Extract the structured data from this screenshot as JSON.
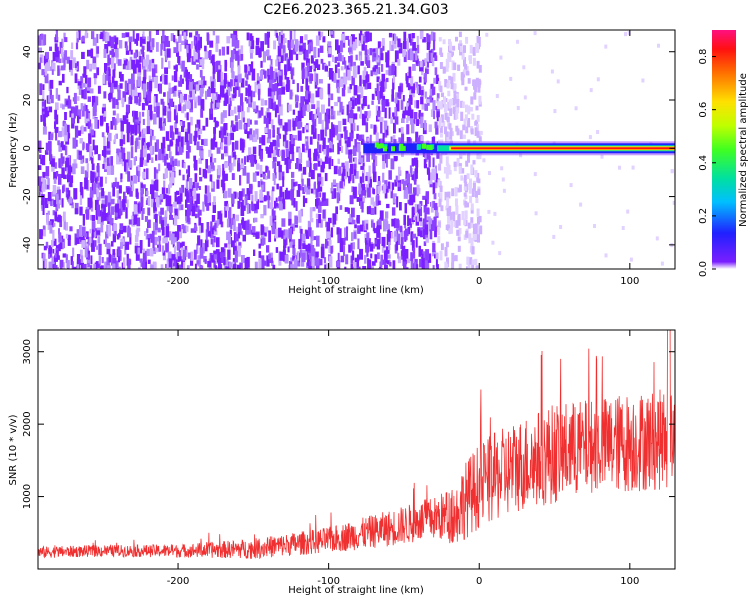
{
  "figure_title": "C2E6.2023.365.21.34.G03",
  "colors": {
    "snr_line": "#f03030",
    "noise_purple": "#7a1fff",
    "axis": "#000000"
  },
  "chart_data": [
    {
      "type": "heatmap",
      "name": "spectrogram",
      "xlabel": "Height of straight line (km)",
      "ylabel": "Frequency (Hz)",
      "xlim": [
        -293,
        130
      ],
      "ylim": [
        -50,
        49
      ],
      "xticks": [
        -200,
        -100,
        0,
        100
      ],
      "yticks": [
        -40,
        -20,
        0,
        20,
        40
      ],
      "colorbar": {
        "label": "Normalized spectral amplitude",
        "range": [
          0.0,
          0.9
        ],
        "ticks": [
          0.0,
          0.2,
          0.4,
          0.6,
          0.8
        ],
        "tick_labels": [
          "0.0",
          "0.2",
          "0.4",
          "0.6",
          "0.8"
        ],
        "colormap": "rainbow"
      },
      "regions": [
        {
          "description": "broadband noise",
          "x_range": [
            -293,
            -28
          ],
          "freq_range": [
            -50,
            49
          ],
          "amplitude": 0.1
        },
        {
          "description": "sparse noise",
          "x_range": [
            -28,
            0
          ],
          "freq_range": [
            -50,
            49
          ],
          "amplitude": 0.05
        },
        {
          "description": "carrier emerging",
          "x_range": [
            -77,
            -28
          ],
          "freq_center": 0,
          "amplitude": 0.35
        },
        {
          "description": "carrier line",
          "x_range": [
            -28,
            130
          ],
          "freq_center": 0,
          "amplitude": 0.85
        }
      ]
    },
    {
      "type": "line",
      "name": "snr",
      "xlabel": "Height of straight line (km)",
      "ylabel": "SNR (10 * v/v)",
      "xlim": [
        -293,
        130
      ],
      "ylim": [
        0,
        3300
      ],
      "xticks": [
        -200,
        -100,
        0,
        100
      ],
      "yticks": [
        1000,
        2000,
        3000
      ],
      "series": [
        {
          "name": "SNR",
          "x": [
            -293,
            -250,
            -200,
            -150,
            -100,
            -60,
            -30,
            -15,
            -14,
            0,
            25,
            50,
            75,
            100,
            130
          ],
          "mean": [
            230,
            250,
            250,
            280,
            400,
            560,
            700,
            750,
            850,
            1150,
            1420,
            1600,
            1700,
            1750,
            1800
          ],
          "spread": [
            80,
            80,
            90,
            140,
            180,
            250,
            300,
            420,
            500,
            600,
            650,
            700,
            650,
            700,
            700
          ],
          "max_peak": 3300
        }
      ]
    }
  ]
}
